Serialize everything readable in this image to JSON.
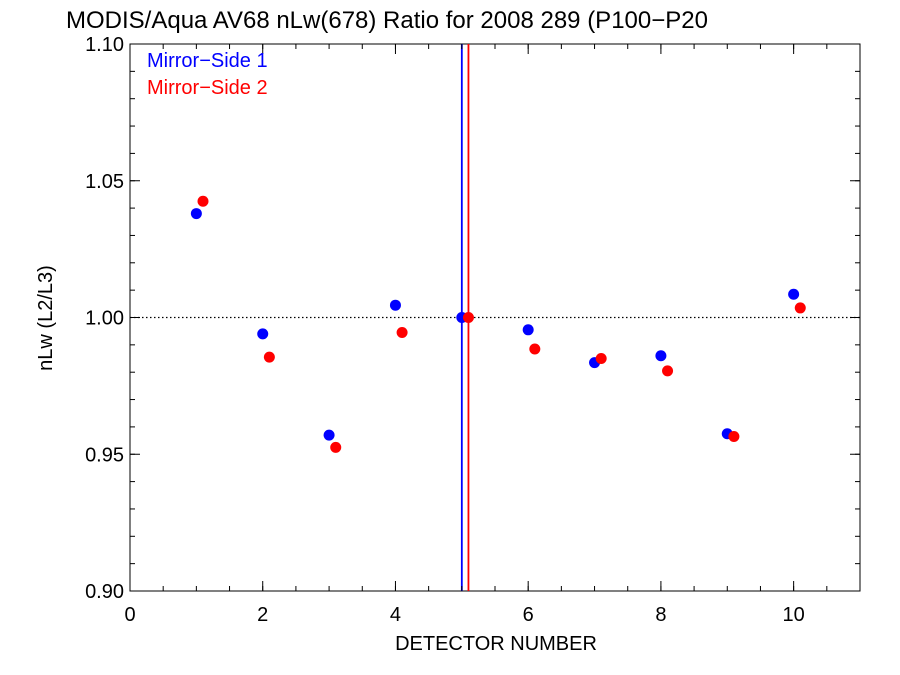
{
  "chart_data": {
    "type": "scatter",
    "title": "MODIS/Aqua AV68 nLw(678) Ratio for 2008 289 (P100−P20",
    "xlabel": "DETECTOR NUMBER",
    "ylabel": "nLw (L2/L3)",
    "xlim": [
      0,
      11
    ],
    "ylim": [
      0.9,
      1.1
    ],
    "x_ticks": [
      0,
      2,
      4,
      6,
      8,
      10
    ],
    "x_tick_labels": [
      "0",
      "2",
      "4",
      "6",
      "8",
      "10"
    ],
    "y_ticks": [
      0.9,
      0.95,
      1.0,
      1.05,
      1.1
    ],
    "y_tick_labels": [
      "0.90",
      "0.95",
      "1.00",
      "1.05",
      "1.10"
    ],
    "x_minor_step": 0.5,
    "y_minor_step": 0.01,
    "reference_line": {
      "y": 1.0,
      "style": "dotted",
      "color": "#000000"
    },
    "vertical_lines": [
      {
        "x": 5.0,
        "color": "#0000ff"
      },
      {
        "x": 5.1,
        "color": "#ff0000"
      }
    ],
    "legend_position": "top-left",
    "grid": false,
    "series": [
      {
        "name": "Mirror−Side 1",
        "color": "#0000ff",
        "x": [
          1,
          2,
          3,
          4,
          5,
          6,
          7,
          8,
          9,
          10
        ],
        "y": [
          1.038,
          0.994,
          0.957,
          1.0045,
          1.0,
          0.9955,
          0.9835,
          0.986,
          0.9575,
          1.0085
        ]
      },
      {
        "name": "Mirror−Side 2",
        "color": "#ff0000",
        "x": [
          1.1,
          2.1,
          3.1,
          4.1,
          5.1,
          6.1,
          7.1,
          8.1,
          9.1,
          10.1
        ],
        "y": [
          1.0425,
          0.9855,
          0.9525,
          0.9945,
          1.0,
          0.9885,
          0.985,
          0.9805,
          0.9565,
          1.0035
        ]
      }
    ]
  }
}
